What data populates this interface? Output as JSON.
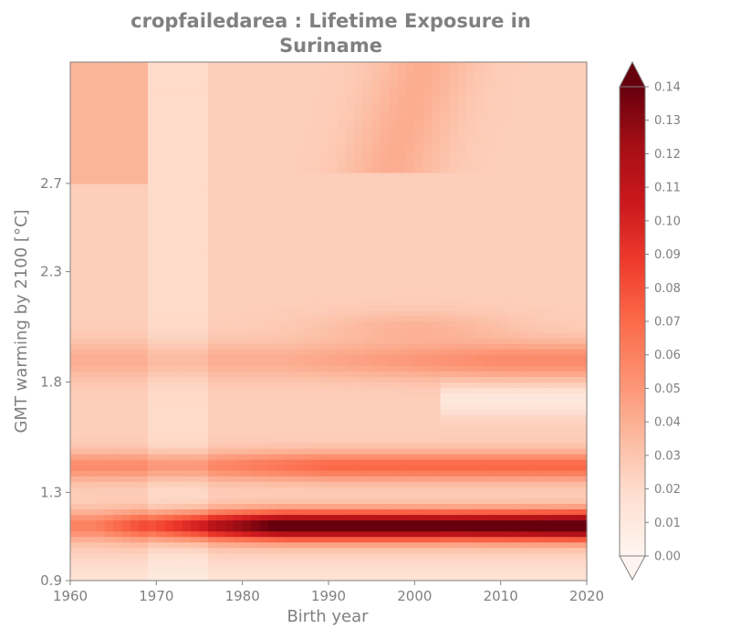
{
  "chart_data": {
    "type": "heatmap",
    "title_line1": "cropfailedarea : Lifetime Exposure in",
    "title_line2": "Suriname",
    "xlabel": "Birth year",
    "ylabel": "GMT warming by 2100 [°C]",
    "xlim": [
      1960,
      2020
    ],
    "ylim": [
      0.9,
      3.25
    ],
    "x_ticks": [
      1960,
      1970,
      1980,
      1990,
      2000,
      2010,
      2020
    ],
    "y_ticks": [
      0.9,
      1.3,
      1.8,
      2.3,
      2.7
    ],
    "y_tick_labels": [
      "0.9",
      "1.3",
      "1.8",
      "2.3",
      "2.7"
    ],
    "colorbar": {
      "cmap": "Reds",
      "vmin": 0.0,
      "vmax": 0.14,
      "extend": "both",
      "ticks": [
        0.0,
        0.01,
        0.02,
        0.03,
        0.04,
        0.05,
        0.06,
        0.07,
        0.08,
        0.09,
        0.1,
        0.11,
        0.12,
        0.13,
        0.14
      ],
      "tick_labels": [
        "0.00",
        "0.01",
        "0.02",
        "0.03",
        "0.04",
        "0.05",
        "0.06",
        "0.07",
        "0.08",
        "0.09",
        "0.10",
        "0.11",
        "0.12",
        "0.13",
        "0.14"
      ]
    },
    "colormap_stops": [
      "#fff5f0",
      "#fee0d2",
      "#fcbba1",
      "#fc9272",
      "#fb6a4a",
      "#ef3b2c",
      "#cb181d",
      "#a50f15",
      "#67000d"
    ]
  }
}
